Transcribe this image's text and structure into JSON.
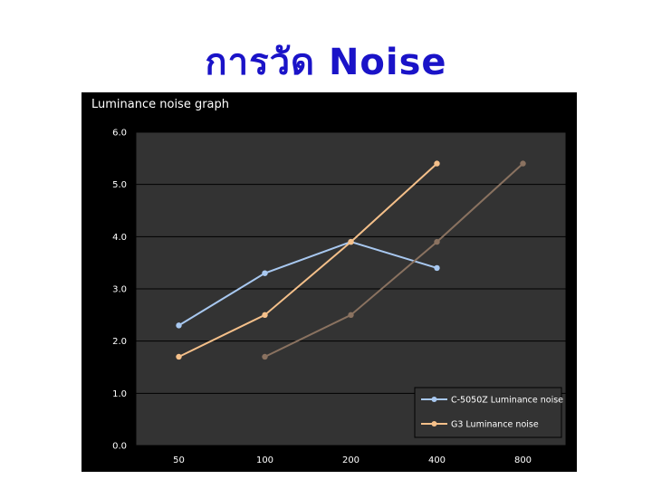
{
  "slide": {
    "title": "การวัด Noise"
  },
  "colors": {
    "panel_bg": "#000000",
    "plot_bg": "#333333",
    "grid": "#000000",
    "axis_text": "#ffffff",
    "title_color": "#1a13c8"
  },
  "chart_data": {
    "type": "line",
    "title": "Luminance noise graph",
    "xlabel": "",
    "ylabel": "",
    "categories": [
      "50",
      "100",
      "200",
      "400",
      "800"
    ],
    "ylim": [
      0,
      6
    ],
    "yticks": [
      "0.0",
      "1.0",
      "2.0",
      "3.0",
      "4.0",
      "5.0",
      "6.0"
    ],
    "grid": true,
    "legend_position": "bottom-right",
    "series": [
      {
        "name": "C-5050Z Luminance noise",
        "color": "#a8c8f0",
        "values": [
          2.3,
          3.3,
          3.9,
          3.4,
          null
        ]
      },
      {
        "name": "G3 Luminance noise",
        "color": "#f5c08a",
        "values": [
          1.7,
          2.5,
          3.9,
          5.4,
          null
        ]
      },
      {
        "name": "",
        "color": "#8a7260",
        "values": [
          null,
          1.7,
          2.5,
          3.9,
          5.4
        ]
      }
    ]
  }
}
